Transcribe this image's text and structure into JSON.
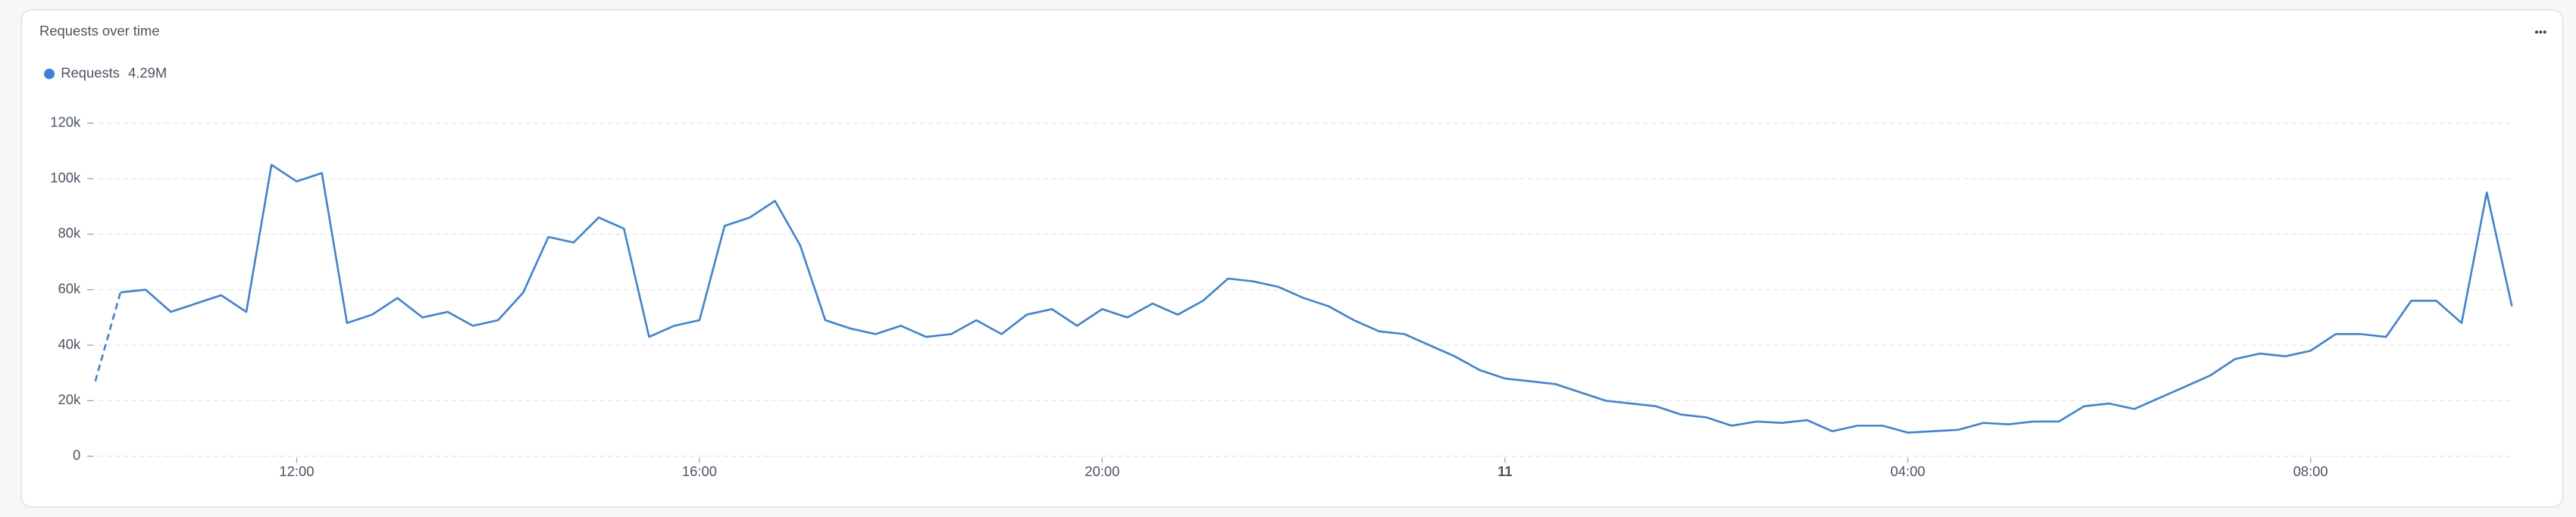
{
  "chart_data": {
    "type": "line",
    "title": "Requests over time",
    "x": [
      10,
      10.25,
      10.5,
      10.75,
      11,
      11.25,
      11.5,
      11.75,
      12,
      12.25,
      12.5,
      12.75,
      13,
      13.25,
      13.5,
      13.75,
      14,
      14.25,
      14.5,
      14.75,
      15,
      15.25,
      15.5,
      15.75,
      16,
      16.25,
      16.5,
      16.75,
      17,
      17.25,
      17.5,
      17.75,
      18,
      18.25,
      18.5,
      18.75,
      19,
      19.25,
      19.5,
      19.75,
      20,
      20.25,
      20.5,
      20.75,
      21,
      21.25,
      21.5,
      21.75,
      22,
      22.25,
      22.5,
      22.75,
      23,
      23.25,
      23.5,
      23.75,
      24,
      24.25,
      24.5,
      24.75,
      25,
      25.25,
      25.5,
      25.75,
      26,
      26.25,
      26.5,
      26.75,
      27,
      27.25,
      27.5,
      27.75,
      28,
      28.25,
      28.5,
      28.75,
      29,
      29.25,
      29.5,
      29.75,
      30,
      30.25,
      30.5,
      30.75,
      31,
      31.25,
      31.5,
      31.75,
      32,
      32.25,
      32.5,
      32.75,
      33,
      33.25,
      33.5,
      33.75,
      34
    ],
    "series": [
      {
        "name": "Requests",
        "color": "#3b82db",
        "legend_value": {
          "value": 4290000,
          "label": "4.29M"
        },
        "values": [
          27000,
          59000,
          60000,
          52000,
          55000,
          58000,
          52000,
          105000,
          99000,
          102000,
          48000,
          51000,
          57000,
          50000,
          52000,
          47000,
          49000,
          59000,
          79000,
          77000,
          86000,
          82000,
          43000,
          47000,
          49000,
          83000,
          86000,
          92000,
          76000,
          49000,
          46000,
          44000,
          47000,
          43000,
          44000,
          49000,
          44000,
          51000,
          53000,
          47000,
          53000,
          50000,
          55000,
          51000,
          56000,
          64000,
          63000,
          61000,
          57000,
          54000,
          49000,
          45000,
          44000,
          40000,
          36000,
          31000,
          28000,
          27000,
          26000,
          23000,
          20000,
          19000,
          18000,
          15000,
          14000,
          11000,
          12500,
          12000,
          13000,
          9000,
          11000,
          11000,
          8500,
          9000,
          9500,
          12000,
          11500,
          12500,
          12500,
          18000,
          19000,
          17000,
          21000,
          25000,
          29000,
          35000,
          37000,
          36000,
          38000,
          44000,
          44000,
          43000,
          56000,
          56000,
          48000,
          95000,
          54000
        ]
      }
    ],
    "dashed_first_segment": true,
    "xlim": [
      10,
      34
    ],
    "xticks": [
      {
        "value": 12,
        "label": "12:00"
      },
      {
        "value": 16,
        "label": "16:00"
      },
      {
        "value": 20,
        "label": "20:00"
      },
      {
        "value": 24,
        "label": "11"
      },
      {
        "value": 28,
        "label": "04:00"
      },
      {
        "value": 32,
        "label": "08:00"
      }
    ],
    "ylim": [
      0,
      120000
    ],
    "yticks": [
      0,
      {
        "value": 20000,
        "label": "20k"
      },
      {
        "value": 40000,
        "label": "40k"
      },
      {
        "value": 60000,
        "label": "60k"
      },
      {
        "value": 80000,
        "label": "80k"
      },
      {
        "value": 100000,
        "label": "100k"
      },
      {
        "value": 120000,
        "label": "120k"
      }
    ],
    "grid": true
  }
}
